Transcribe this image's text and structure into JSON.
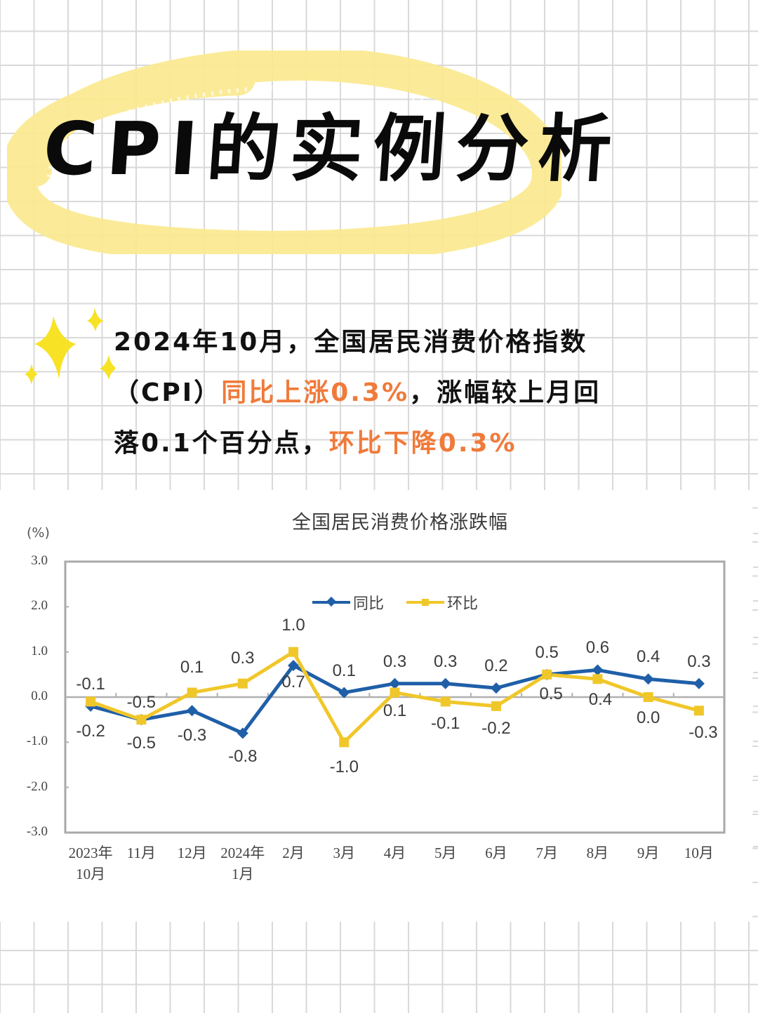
{
  "header": {
    "title": "CPI的实例分析"
  },
  "summary": {
    "line1": "2024年10月，全国居民消费价格指数",
    "line2_prefix": "（CPI）",
    "line2_highlight": "同比上涨0.3%",
    "line2_suffix": "，涨幅较上月回",
    "line3_prefix": "落0.1个百分点，",
    "line3_highlight": "环比下降0.3%"
  },
  "colors": {
    "highlight_text": "#f07a3a",
    "title_ring": "#fbe98d",
    "sparkle": "#f7e225",
    "series_yoy": "#1f5fa8",
    "series_mom": "#f0c72a",
    "grid": "#d9d9d9"
  },
  "icons": {
    "sparkle": "four-point-star-icon"
  },
  "chart_data": {
    "type": "line",
    "title": "全国居民消费价格涨跌幅",
    "ylabel": "(%)",
    "xlabel": "",
    "ylim": [
      -3.0,
      3.0
    ],
    "yticks": [
      "3.0",
      "2.0",
      "1.0",
      "0.0",
      "-1.0",
      "-2.0",
      "-3.0"
    ],
    "categories": [
      "2023年10月",
      "11月",
      "12月",
      "2024年1月",
      "2月",
      "3月",
      "4月",
      "5月",
      "6月",
      "7月",
      "8月",
      "9月",
      "10月"
    ],
    "x_tick_labels": [
      [
        "2023年",
        "10月"
      ],
      [
        "11月"
      ],
      [
        "12月"
      ],
      [
        "2024年",
        "1月"
      ],
      [
        "2月"
      ],
      [
        "3月"
      ],
      [
        "4月"
      ],
      [
        "5月"
      ],
      [
        "6月"
      ],
      [
        "7月"
      ],
      [
        "8月"
      ],
      [
        "9月"
      ],
      [
        "10月"
      ]
    ],
    "series": [
      {
        "name": "同比",
        "color": "#1f5fa8",
        "marker": "diamond",
        "values": [
          -0.2,
          -0.5,
          -0.3,
          -0.8,
          0.7,
          0.1,
          0.3,
          0.3,
          0.2,
          0.5,
          0.6,
          0.4,
          0.3
        ]
      },
      {
        "name": "环比",
        "color": "#f0c72a",
        "marker": "square",
        "values": [
          -0.1,
          -0.5,
          0.1,
          0.3,
          1.0,
          -1.0,
          0.1,
          -0.1,
          -0.2,
          0.5,
          0.4,
          0.0,
          -0.3
        ]
      }
    ],
    "legend_position": "top-center-inside",
    "grid": false,
    "zero_line": true
  }
}
